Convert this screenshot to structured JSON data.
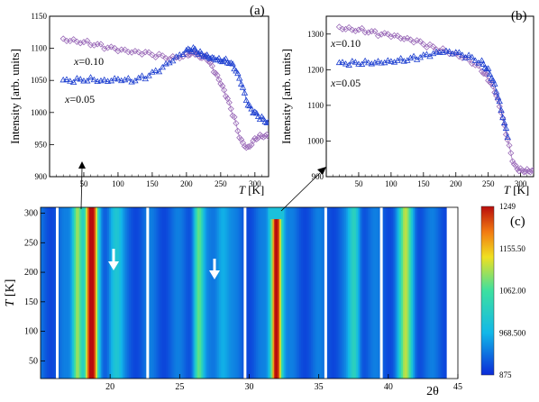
{
  "chart_data": [
    {
      "panel": "(a)",
      "type": "scatter",
      "xlabel_var": "T",
      "xlabel_unit": "[K]",
      "ylabel": "Intensity [arb. units]",
      "xlim": [
        0,
        320
      ],
      "ylim": [
        900,
        1150
      ],
      "xticks": [
        "50",
        "100",
        "150",
        "200",
        "250",
        "300"
      ],
      "yticks": [
        "900",
        "950",
        "1000",
        "1050",
        "1100",
        "1150"
      ],
      "annotations": [
        {
          "var": "x",
          "text": "=0.10"
        },
        {
          "var": "x",
          "text": "=0.05"
        }
      ],
      "series": [
        {
          "label": "x=0.10",
          "marker": "diamond",
          "color": "#9a6ab8",
          "x": [
            20,
            40,
            60,
            80,
            100,
            120,
            140,
            160,
            180,
            200,
            210,
            220,
            230,
            240,
            250,
            260,
            270,
            280,
            290,
            300,
            310,
            320
          ],
          "y": [
            1115,
            1112,
            1108,
            1102,
            1097,
            1093,
            1092,
            1088,
            1085,
            1090,
            1095,
            1088,
            1085,
            1065,
            1045,
            1020,
            990,
            955,
            945,
            960,
            965,
            962
          ]
        },
        {
          "label": "x=0.05",
          "marker": "triangle",
          "color": "#1d3fd0",
          "x": [
            20,
            40,
            60,
            80,
            100,
            120,
            140,
            160,
            180,
            200,
            210,
            220,
            230,
            240,
            250,
            260,
            270,
            280,
            290,
            300,
            310,
            320
          ],
          "y": [
            1048,
            1050,
            1052,
            1050,
            1053,
            1050,
            1055,
            1065,
            1080,
            1095,
            1098,
            1092,
            1088,
            1085,
            1082,
            1080,
            1070,
            1045,
            1010,
            998,
            990,
            985
          ]
        }
      ]
    },
    {
      "panel": "(b)",
      "type": "scatter",
      "xlabel_var": "T",
      "xlabel_unit": "[K]",
      "ylabel": "Intensity [arb. units]",
      "xlim": [
        0,
        320
      ],
      "ylim": [
        900,
        1350
      ],
      "xticks": [
        "50",
        "100",
        "150",
        "200",
        "250",
        "300"
      ],
      "yticks": [
        "900",
        "1000",
        "1100",
        "1200",
        "1300"
      ],
      "annotations": [
        {
          "var": "x",
          "text": "=0.10"
        },
        {
          "var": "x",
          "text": "=0.05"
        }
      ],
      "series": [
        {
          "label": "x=0.10",
          "marker": "diamond",
          "color": "#9a6ab8",
          "x": [
            20,
            40,
            60,
            80,
            100,
            120,
            140,
            160,
            180,
            200,
            220,
            240,
            250,
            260,
            270,
            280,
            290,
            300,
            310,
            320
          ],
          "y": [
            1320,
            1315,
            1310,
            1300,
            1295,
            1285,
            1278,
            1265,
            1255,
            1245,
            1230,
            1200,
            1175,
            1140,
            1080,
            1000,
            930,
            918,
            918,
            918
          ]
        },
        {
          "label": "x=0.05",
          "marker": "triangle",
          "color": "#1d3fd0",
          "x": [
            20,
            40,
            60,
            80,
            100,
            120,
            140,
            160,
            180,
            200,
            220,
            240,
            250,
            260,
            270,
            280
          ],
          "y": [
            1215,
            1218,
            1220,
            1222,
            1225,
            1228,
            1233,
            1240,
            1248,
            1245,
            1235,
            1220,
            1200,
            1160,
            1090,
            1010
          ]
        }
      ]
    },
    {
      "panel": "(c)",
      "type": "heatmap",
      "xlabel": "2θ",
      "ylabel_var": "T",
      "ylabel_unit": "[K]",
      "xlim": [
        15,
        45
      ],
      "ylim": [
        20,
        310
      ],
      "xticks": [
        "20",
        "25",
        "30",
        "35",
        "40",
        "45"
      ],
      "yticks": [
        "50",
        "100",
        "150",
        "200",
        "250",
        "300"
      ],
      "colorbar": {
        "min": 875,
        "max": 1249,
        "ticks": [
          "1249",
          "1155.50",
          "1062.00",
          "968.500",
          "875"
        ]
      },
      "peaks": [
        {
          "center": 18.6,
          "width": 0.45,
          "amp": 1.0,
          "top": 310
        },
        {
          "center": 17.6,
          "width": 0.35,
          "amp": 0.55,
          "top": 310
        },
        {
          "center": 20.3,
          "width": 0.5,
          "amp": 0.22,
          "top": 310
        },
        {
          "center": 26.3,
          "width": 0.35,
          "amp": 0.45,
          "top": 310
        },
        {
          "center": 28.0,
          "width": 0.5,
          "amp": 0.18,
          "top": 310
        },
        {
          "center": 31.9,
          "width": 0.4,
          "amp": 1.0,
          "top": 290
        },
        {
          "center": 37.5,
          "width": 0.4,
          "amp": 0.3,
          "top": 310
        },
        {
          "center": 41.2,
          "width": 0.5,
          "amp": 0.5,
          "top": 310
        }
      ],
      "gaps": [
        16.2,
        22.7,
        29.7,
        35.5,
        39.5
      ]
    }
  ],
  "panel_labels": [
    "(a)",
    "(b)",
    "(c)"
  ]
}
